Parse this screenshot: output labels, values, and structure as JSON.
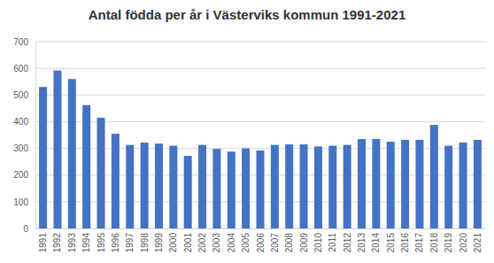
{
  "chart_data": {
    "type": "bar",
    "title": "Antal födda per år i Västerviks kommun 1991-2021",
    "categories": [
      "1991",
      "1992",
      "1993",
      "1994",
      "1995",
      "1996",
      "1997",
      "1998",
      "1999",
      "2000",
      "2001",
      "2002",
      "2003",
      "2004",
      "2005",
      "2006",
      "2007",
      "2008",
      "2009",
      "2010",
      "2011",
      "2012",
      "2013",
      "2014",
      "2015",
      "2016",
      "2017",
      "2018",
      "2019",
      "2020",
      "2021"
    ],
    "values": [
      530,
      592,
      560,
      462,
      415,
      355,
      313,
      322,
      318,
      310,
      272,
      313,
      298,
      288,
      300,
      292,
      313,
      315,
      315,
      307,
      310,
      313,
      335,
      335,
      325,
      332,
      332,
      388,
      310,
      322,
      332
    ],
    "color": "#4472c4",
    "ylim": [
      0,
      700
    ],
    "yticks": [
      0,
      100,
      200,
      300,
      400,
      500,
      600,
      700
    ],
    "grid": true
  }
}
